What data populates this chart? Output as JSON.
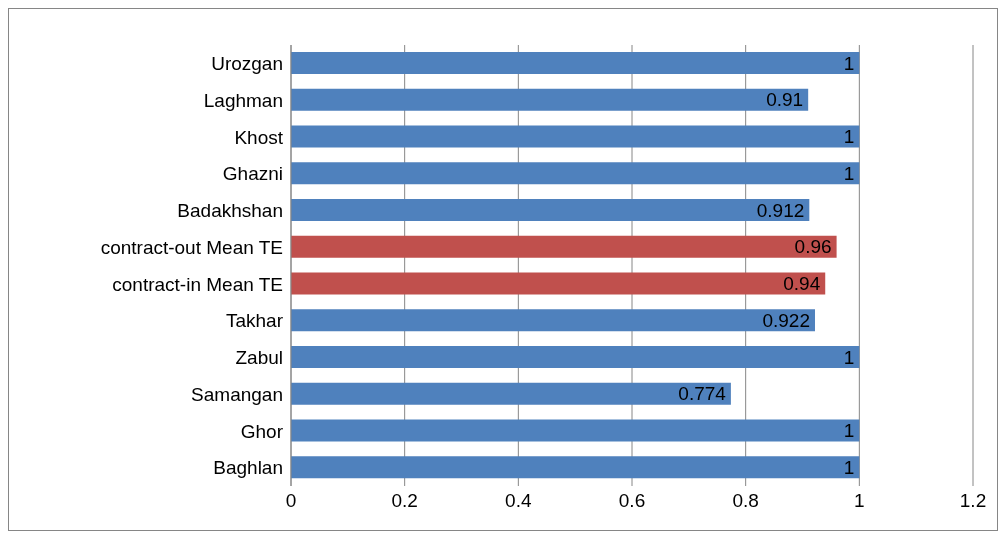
{
  "chart_data": {
    "type": "bar",
    "orientation": "horizontal",
    "categories": [
      "Urozgan",
      "Laghman",
      "Khost",
      "Ghazni",
      "Badakhshan",
      "contract-out Mean TE",
      "contract-in Mean TE",
      "Takhar",
      "Zabul",
      "Samangan",
      "Ghor",
      "Baghlan"
    ],
    "values": [
      1,
      0.91,
      1,
      1,
      0.912,
      0.96,
      0.94,
      0.922,
      1,
      0.774,
      1,
      1
    ],
    "colors": [
      "#4f81bd",
      "#4f81bd",
      "#4f81bd",
      "#4f81bd",
      "#4f81bd",
      "#c0504d",
      "#c0504d",
      "#4f81bd",
      "#4f81bd",
      "#4f81bd",
      "#4f81bd",
      "#4f81bd"
    ],
    "xlim": [
      0,
      1.2
    ],
    "xticks": [
      0,
      0.2,
      0.4,
      0.6,
      0.8,
      1,
      1.2
    ],
    "grid": "x",
    "data_labels": true,
    "legend": false
  }
}
